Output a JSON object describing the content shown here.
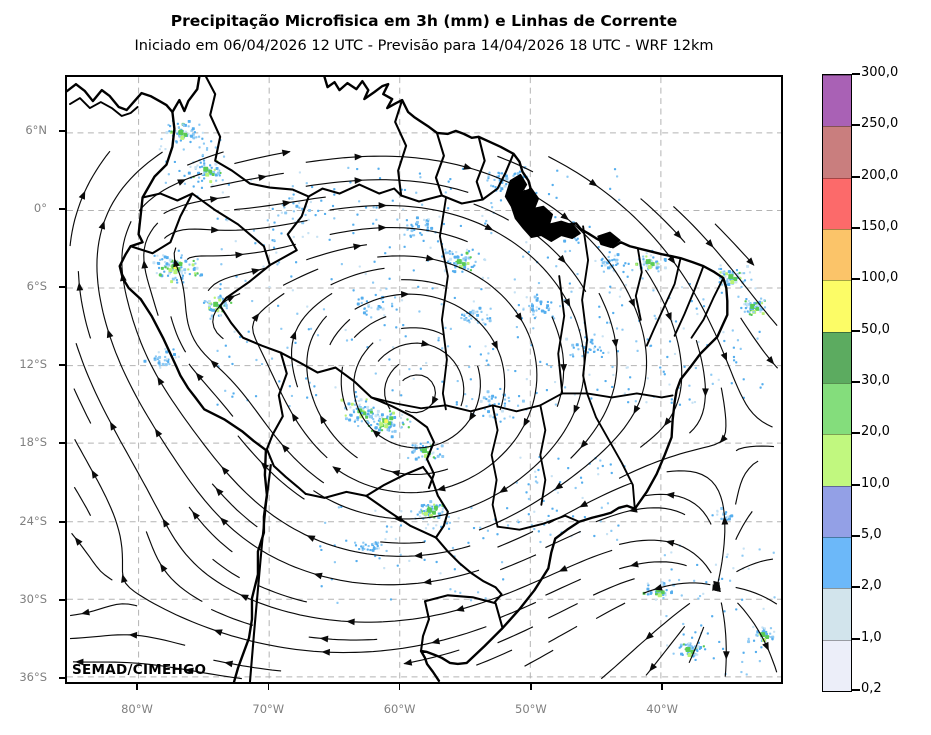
{
  "header": {
    "title": "Precipitação Microfisica em 3h (mm) e Linhas de Corrente",
    "subtitle": "Iniciado em 06/04/2026 12 UTC - Previsão para 14/04/2026 18 UTC - WRF 12km"
  },
  "map": {
    "watermark": "SEMAD/CIMEHGO"
  },
  "axes": {
    "lat_labels": [
      "6°N",
      "0°",
      "6°S",
      "12°S",
      "18°S",
      "24°S",
      "30°S",
      "36°S"
    ],
    "lon_labels": [
      "80°W",
      "70°W",
      "60°W",
      "50°W",
      "40°W"
    ]
  },
  "colorbar": {
    "tick_labels": [
      "0,2",
      "1,0",
      "2,0",
      "5,0",
      "10,0",
      "20,0",
      "30,0",
      "50,0",
      "100,0",
      "150,0",
      "200,0",
      "250,0",
      "300,0"
    ],
    "segment_colors": [
      "#eceef9",
      "#d2e4ec",
      "#6cb8f9",
      "#93a0e6",
      "#c1f87f",
      "#84dd7c",
      "#5cab60",
      "#fcfc66",
      "#fbc469",
      "#fc6a6a",
      "#c97e7e",
      "#a961b5"
    ]
  },
  "chart_data": {
    "type": "heatmap",
    "title": "Precipitação Microfisica em 3h (mm) e Linhas de Corrente",
    "subtitle": "Iniciado em 06/04/2026 12 UTC - Previsão para 14/04/2026 18 UTC - WRF 12km",
    "overlays": [
      "streamlines",
      "precipitation"
    ],
    "x_tick_labels": [
      "80°W",
      "70°W",
      "60°W",
      "50°W",
      "40°W"
    ],
    "y_tick_labels": [
      "6°N",
      "0°",
      "6°S",
      "12°S",
      "18°S",
      "24°S",
      "30°S",
      "36°S"
    ],
    "legend_levels_mm": [
      0.2,
      1.0,
      2.0,
      5.0,
      10.0,
      20.0,
      30.0,
      50.0,
      100.0,
      150.0,
      200.0,
      250.0,
      300.0
    ],
    "legend_colors": [
      "#eceef9",
      "#d2e4ec",
      "#6cb8f9",
      "#93a0e6",
      "#c1f87f",
      "#84dd7c",
      "#5cab60",
      "#fcfc66",
      "#fbc469",
      "#fc6a6a",
      "#c97e7e",
      "#a961b5"
    ],
    "annotation": "SEMAD/CIMEHGO"
  }
}
